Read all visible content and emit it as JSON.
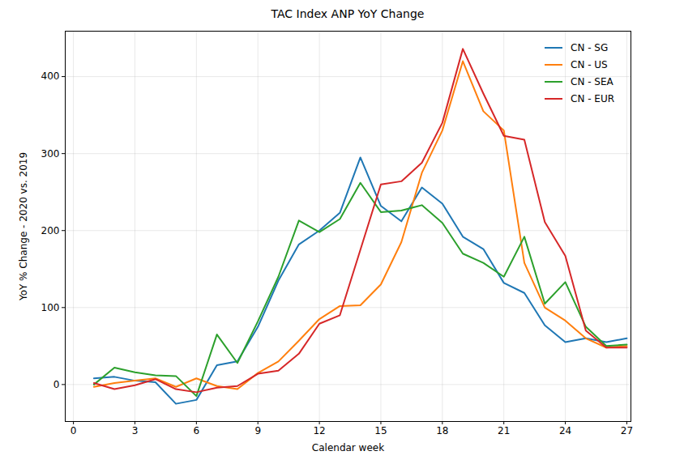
{
  "chart_data": {
    "type": "line",
    "title": "TAC Index ANP YoY Change",
    "x_label": "Calendar week",
    "y_label": "YoY % Change - 2020 vs. 2019",
    "x": [
      1,
      2,
      3,
      4,
      5,
      6,
      7,
      8,
      9,
      10,
      11,
      12,
      13,
      14,
      15,
      16,
      17,
      18,
      19,
      20,
      21,
      22,
      23,
      24,
      25,
      26,
      27
    ],
    "series": [
      {
        "name": "CN - SG",
        "color": "#1f77b4",
        "values": [
          8,
          10,
          5,
          3,
          -25,
          -20,
          25,
          30,
          75,
          135,
          182,
          200,
          223,
          295,
          232,
          212,
          256,
          235,
          192,
          176,
          132,
          119,
          77,
          55,
          60,
          55,
          60
        ]
      },
      {
        "name": "CN - US",
        "color": "#ff7f0e",
        "values": [
          -3,
          2,
          5,
          8,
          -3,
          8,
          -2,
          -6,
          15,
          30,
          57,
          85,
          102,
          103,
          130,
          185,
          275,
          330,
          420,
          355,
          330,
          158,
          100,
          83,
          60,
          48,
          50
        ]
      },
      {
        "name": "CN - SEA",
        "color": "#2ca02c",
        "values": [
          0,
          22,
          16,
          12,
          11,
          -15,
          65,
          28,
          82,
          140,
          213,
          198,
          215,
          262,
          224,
          226,
          233,
          210,
          170,
          158,
          140,
          192,
          105,
          133,
          75,
          50,
          52
        ]
      },
      {
        "name": "CN - EUR",
        "color": "#d62728",
        "values": [
          2,
          -6,
          -1,
          7,
          -6,
          -10,
          -4,
          -2,
          14,
          18,
          40,
          79,
          90,
          175,
          260,
          264,
          288,
          340,
          436,
          378,
          323,
          318,
          211,
          167,
          70,
          48,
          48
        ]
      }
    ],
    "xlim": [
      -0.4,
      27.2
    ],
    "xticks": [
      0,
      3,
      6,
      9,
      12,
      15,
      18,
      21,
      24,
      27
    ],
    "ylim": [
      -48,
      459
    ],
    "yticks": [
      0,
      100,
      200,
      300,
      400
    ],
    "grid": true,
    "legend": "upper right"
  }
}
